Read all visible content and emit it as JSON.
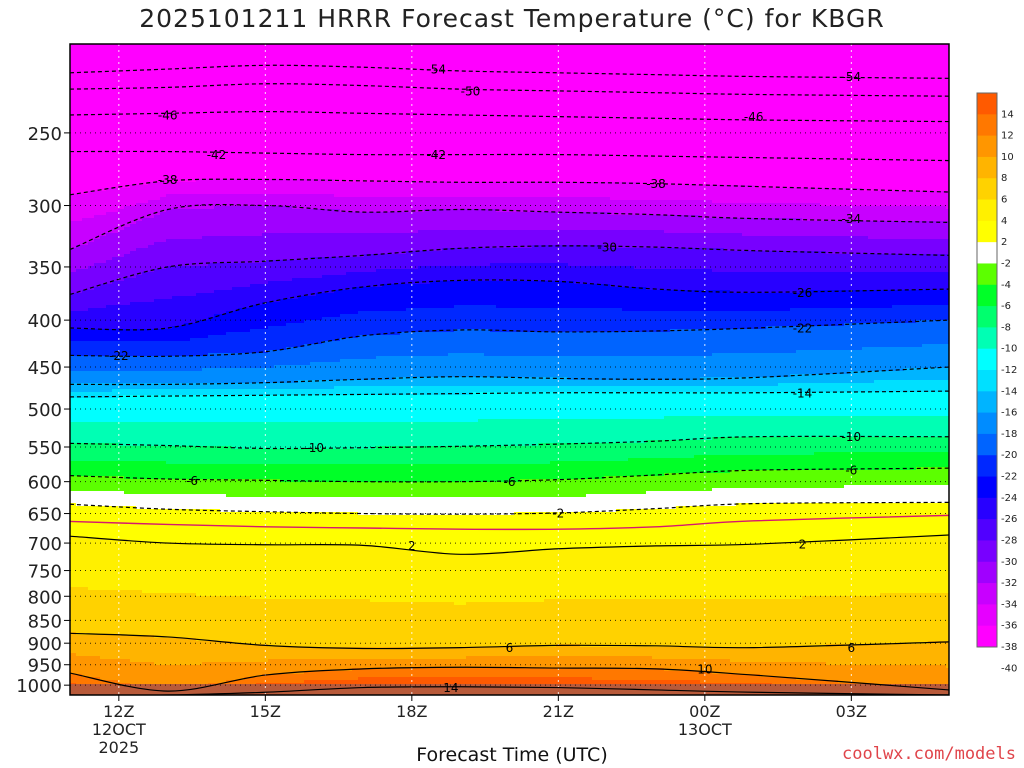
{
  "title": "2025101211 HRRR Forecast Temperature (°C) for KBGR",
  "xlabel": "Forecast Time (UTC)",
  "credit": "coolwx.com/models",
  "chart_data": {
    "type": "heatmap",
    "title": "2025101211 HRRR Forecast Temperature (°C) for KBGR",
    "xlabel": "Forecast Time (UTC)",
    "ylabel": "",
    "x_ticks": [
      {
        "hour": 12,
        "lines": [
          "12Z",
          "12OCT",
          "2025"
        ]
      },
      {
        "hour": 15,
        "lines": [
          "15Z"
        ]
      },
      {
        "hour": 18,
        "lines": [
          "18Z"
        ]
      },
      {
        "hour": 21,
        "lines": [
          "21Z"
        ]
      },
      {
        "hour": 24,
        "lines": [
          "00Z",
          "13OCT"
        ]
      },
      {
        "hour": 27,
        "lines": [
          "03Z"
        ]
      }
    ],
    "xlim_hours": [
      11,
      29
    ],
    "y_ticks": [
      250,
      300,
      350,
      400,
      450,
      500,
      550,
      600,
      650,
      700,
      750,
      800,
      850,
      900,
      950,
      1000
    ],
    "y_axis": "pressure (hPa), inverted",
    "ylim": [
      1025,
      200
    ],
    "colorbar": {
      "orientation": "vertical",
      "placement": "right",
      "labels": [
        "14",
        "12",
        "10",
        "8",
        "6",
        "4",
        "2",
        "-2",
        "-4",
        "-6",
        "-8",
        "-10",
        "-12",
        "-14",
        "-16",
        "-18",
        "-20",
        "-22",
        "-24",
        "-26",
        "-28",
        "-30",
        "-32",
        "-34",
        "-36",
        "-38",
        "-40"
      ],
      "colors": [
        "#ff5a00",
        "#ff7800",
        "#ff9600",
        "#ffb400",
        "#ffd200",
        "#fff000",
        "#ffff00",
        "#ffffff",
        "#5cff00",
        "#00ff28",
        "#00ff6e",
        "#00ffb4",
        "#00ffff",
        "#00e0ff",
        "#00b4ff",
        "#008cff",
        "#0064ff",
        "#0028ff",
        "#0000ff",
        "#2800ff",
        "#5000ff",
        "#7800ff",
        "#a000ff",
        "#c800ff",
        "#e600ff",
        "#ff00ff"
      ]
    },
    "isotherms": [
      {
        "label": "-54",
        "pressure": [
          215,
          213,
          211,
          212,
          214,
          215,
          216,
          217,
          218
        ],
        "label_positions": [
          [
            18.5,
            213
          ],
          [
            27.0,
            217
          ]
        ]
      },
      {
        "label": "-50",
        "pressure": [
          224,
          223,
          221,
          222,
          224,
          225,
          226,
          227,
          228
        ],
        "label_positions": [
          [
            19.2,
            225
          ]
        ]
      },
      {
        "label": "-46",
        "pressure": [
          239,
          238,
          237,
          238,
          239,
          240,
          241,
          242,
          243
        ],
        "label_positions": [
          [
            13.0,
            239
          ],
          [
            25.0,
            240
          ]
        ]
      },
      {
        "label": "-42",
        "pressure": [
          262,
          262,
          263,
          264,
          264,
          264,
          265,
          266,
          268
        ],
        "label_positions": [
          [
            14.0,
            264
          ],
          [
            18.5,
            264
          ]
        ]
      },
      {
        "label": "-38",
        "pressure": [
          292,
          282,
          281,
          282,
          283,
          283,
          284,
          286,
          290
        ],
        "label_positions": [
          [
            13.0,
            281
          ],
          [
            23.0,
            284
          ]
        ]
      },
      {
        "label": "-34",
        "pressure": [
          335,
          303,
          300,
          305,
          303,
          305,
          307,
          310,
          313
        ],
        "label_positions": [
          [
            27.0,
            310
          ]
        ]
      },
      {
        "label": "-30",
        "pressure": [
          375,
          350,
          345,
          340,
          334,
          332,
          333,
          336,
          340
        ],
        "label_positions": [
          [
            22.0,
            333
          ]
        ]
      },
      {
        "label": "-26",
        "pressure": [
          408,
          408,
          383,
          368,
          362,
          363,
          370,
          373,
          370
        ],
        "label_positions": [
          [
            26.0,
            373
          ]
        ]
      },
      {
        "label": "-22",
        "pressure": [
          437,
          438,
          433,
          416,
          410,
          412,
          411,
          408,
          400
        ],
        "label_positions": [
          [
            12.0,
            437
          ],
          [
            26.0,
            408
          ]
        ]
      },
      {
        "label": "-18",
        "pressure": [
          470,
          470,
          468,
          464,
          461,
          463,
          464,
          462,
          450
        ],
        "label_positions": []
      },
      {
        "label": "-14",
        "pressure": [
          485,
          484,
          483,
          482,
          481,
          480,
          480,
          480,
          478
        ],
        "label_positions": [
          [
            26.0,
            480
          ]
        ]
      },
      {
        "label": "-10",
        "pressure": [
          545,
          548,
          552,
          551,
          549,
          546,
          542,
          536,
          536
        ],
        "label_positions": [
          [
            16.0,
            551
          ],
          [
            27.0,
            536
          ]
        ]
      },
      {
        "label": "-6",
        "pressure": [
          591,
          596,
          598,
          600,
          600,
          597,
          590,
          583,
          580
        ],
        "label_positions": [
          [
            13.5,
            598
          ],
          [
            20.0,
            600
          ],
          [
            27.0,
            583
          ]
        ]
      },
      {
        "label": "-2",
        "pressure": [
          635,
          643,
          647,
          650,
          651,
          649,
          642,
          634,
          632
        ],
        "label_positions": [
          [
            21.0,
            649
          ]
        ]
      },
      {
        "label": "2",
        "pressure": [
          688,
          700,
          703,
          704,
          720,
          710,
          705,
          702,
          686
        ],
        "label_positions": [
          [
            18.0,
            704
          ],
          [
            26.0,
            702
          ]
        ]
      },
      {
        "label": "6",
        "pressure": [
          878,
          886,
          905,
          912,
          910,
          905,
          906,
          910,
          897
        ],
        "label_positions": [
          [
            20.0,
            910
          ],
          [
            27.0,
            910
          ]
        ]
      },
      {
        "label": "10",
        "pressure": [
          970,
          1015,
          975,
          960,
          956,
          958,
          960,
          975,
          1012
        ],
        "label_positions": [
          [
            24.0,
            960
          ]
        ]
      },
      {
        "label": "14",
        "pressure": [
          1025,
          1025,
          1018,
          1006,
          1004,
          1006,
          1012,
          1018,
          1025
        ],
        "label_positions": [
          [
            18.8,
            1006
          ]
        ]
      }
    ],
    "isotherm_hours": [
      11,
      13,
      15,
      17,
      19,
      21,
      23,
      25,
      29
    ],
    "freezing_line": {
      "pressure": [
        663,
        668,
        672,
        674,
        676,
        676,
        672,
        662,
        653
      ]
    }
  }
}
